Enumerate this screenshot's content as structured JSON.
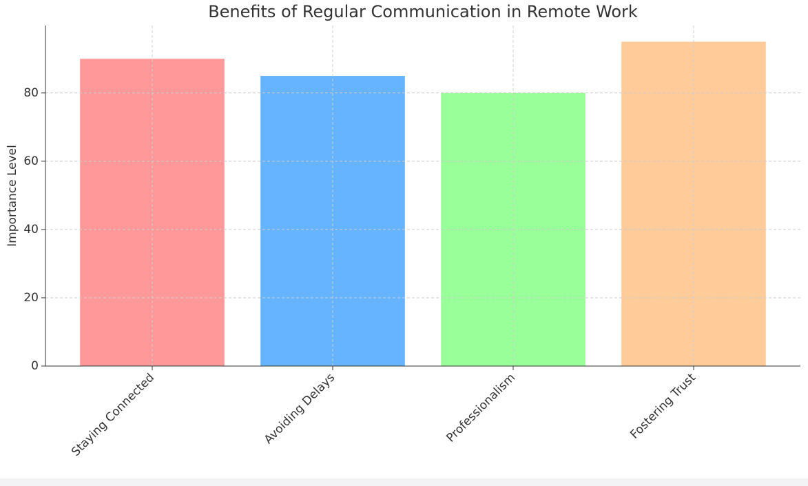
{
  "chart_data": {
    "type": "bar",
    "title": "Benefits of Regular Communication in Remote Work",
    "y_label": "Importance Level",
    "categories": [
      "Staying Connected",
      "Avoiding Delays",
      "Professionalism",
      "Fostering Trust"
    ],
    "values": [
      90,
      85,
      80,
      95
    ],
    "colors": [
      "#ff9999",
      "#66b3ff",
      "#99ff99",
      "#ffcc99"
    ],
    "ylim": [
      0,
      99.75
    ],
    "yticks": [
      0,
      20,
      40,
      60,
      80
    ],
    "grid": true
  }
}
